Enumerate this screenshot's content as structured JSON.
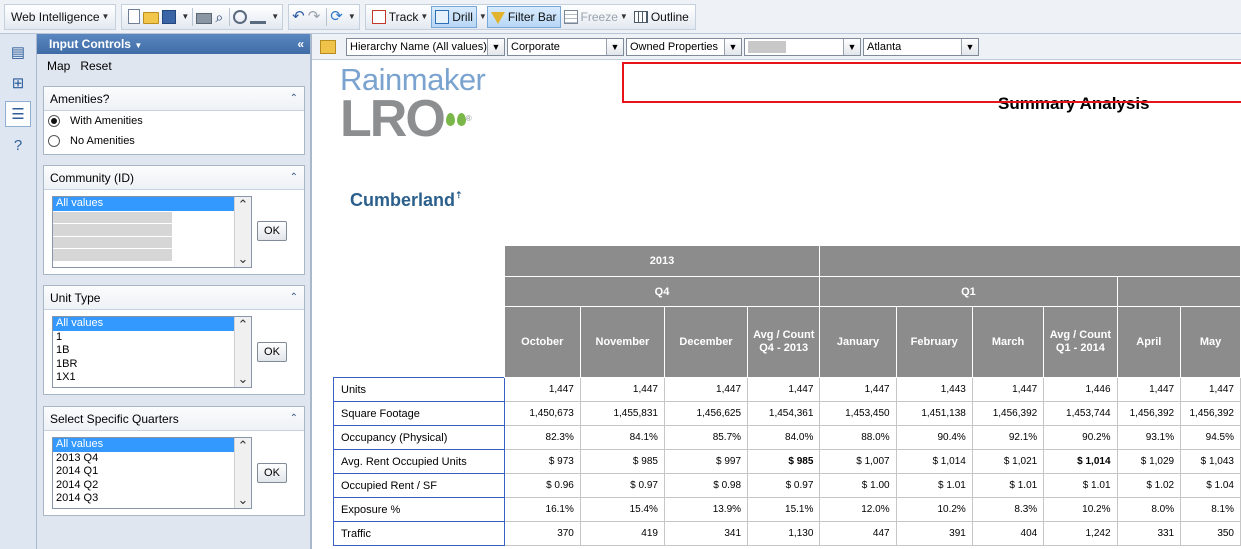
{
  "toolbar": {
    "app_menu": "Web Intelligence",
    "track": "Track",
    "drill": "Drill",
    "filter_bar": "Filter Bar",
    "freeze": "Freeze",
    "outline": "Outline"
  },
  "panel": {
    "title": "Input Controls",
    "map": "Map",
    "reset": "Reset",
    "amenities": {
      "title": "Amenities?",
      "options": [
        "With Amenities",
        "No Amenities"
      ]
    },
    "community": {
      "title": "Community (ID)",
      "selected": "All values",
      "ok": "OK"
    },
    "unit_type": {
      "title": "Unit Type",
      "options": [
        "All values",
        "1",
        "1B",
        "1BR",
        "1X1"
      ],
      "ok": "OK"
    },
    "quarters": {
      "title": "Select Specific Quarters",
      "options": [
        "All values",
        "2013 Q4",
        "2014 Q1",
        "2014 Q2",
        "2014 Q3"
      ],
      "ok": "OK"
    }
  },
  "filters": {
    "hierarchy": "Hierarchy Name (All values)",
    "corporate": "Corporate",
    "owned": "Owned Properties",
    "city": "Atlanta"
  },
  "report": {
    "logo_top": "Rainmaker",
    "logo_bottom": "LRO",
    "logo_reg": "®",
    "title": "Summary Analysis",
    "region": "Cumberland",
    "year": "2013",
    "q4": "Q4",
    "q1": "Q1",
    "columns": [
      "October",
      "November",
      "December",
      "Avg / Count Q4 - 2013",
      "January",
      "February",
      "March",
      "Avg / Count Q1 - 2014",
      "April",
      "May"
    ],
    "rows": [
      {
        "label": "Units",
        "values": [
          "1,447",
          "1,447",
          "1,447",
          "1,447",
          "1,447",
          "1,443",
          "1,447",
          "1,446",
          "1,447",
          "1,447"
        ]
      },
      {
        "label": "Square Footage",
        "values": [
          "1,450,673",
          "1,455,831",
          "1,456,625",
          "1,454,361",
          "1,453,450",
          "1,451,138",
          "1,456,392",
          "1,453,744",
          "1,456,392",
          "1,456,392"
        ]
      },
      {
        "label": "Occupancy (Physical)",
        "values": [
          "82.3%",
          "84.1%",
          "85.7%",
          "84.0%",
          "88.0%",
          "90.4%",
          "92.1%",
          "90.2%",
          "93.1%",
          "94.5%"
        ]
      },
      {
        "label": "Avg. Rent Occupied Units",
        "values": [
          "$ 973",
          "$ 985",
          "$ 997",
          "$ 985",
          "$ 1,007",
          "$ 1,014",
          "$ 1,021",
          "$ 1,014",
          "$ 1,029",
          "$ 1,043"
        ]
      },
      {
        "label": "Occupied Rent / SF",
        "values": [
          "$ 0.96",
          "$ 0.97",
          "$ 0.98",
          "$ 0.97",
          "$ 1.00",
          "$ 1.01",
          "$ 1.01",
          "$ 1.01",
          "$ 1.02",
          "$ 1.04"
        ]
      },
      {
        "label": "Exposure %",
        "values": [
          "16.1%",
          "15.4%",
          "13.9%",
          "15.1%",
          "12.0%",
          "10.2%",
          "8.3%",
          "10.2%",
          "8.0%",
          "8.1%"
        ]
      },
      {
        "label": "Traffic",
        "values": [
          "370",
          "419",
          "341",
          "1,130",
          "447",
          "391",
          "404",
          "1,242",
          "331",
          "350"
        ]
      }
    ]
  }
}
